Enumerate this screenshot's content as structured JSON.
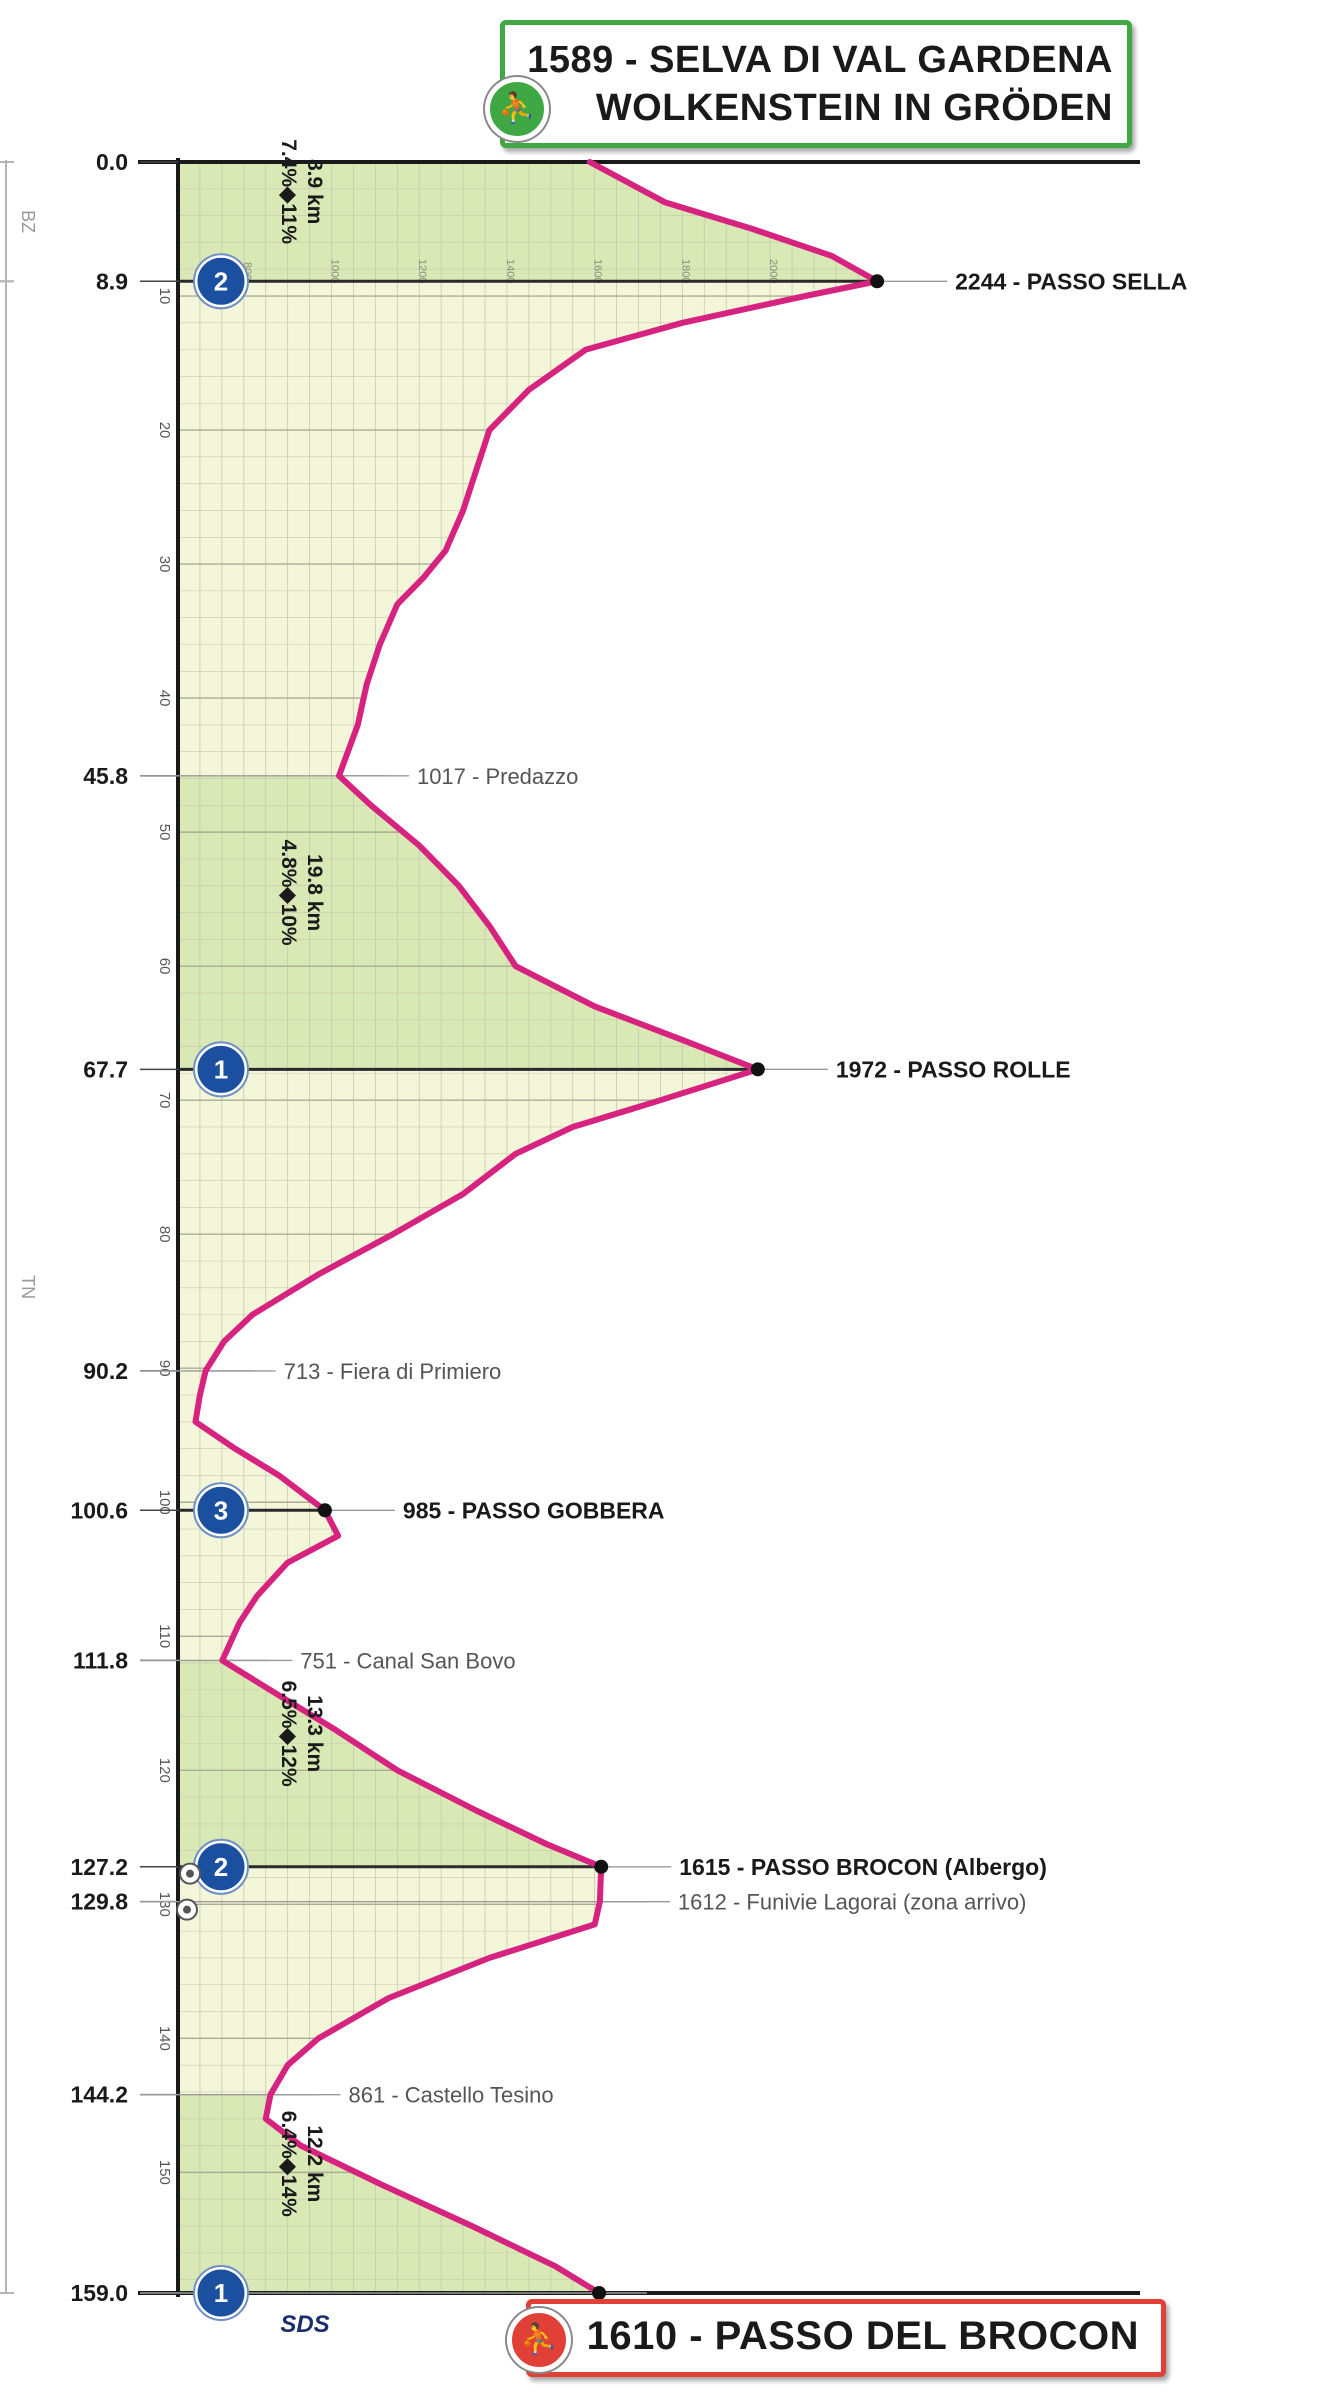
{
  "chart_data": {
    "type": "area",
    "orientation": "vertical",
    "start_label": "1589 - SELVA DI VAL GARDENA",
    "start_label_line2": "WOLKENSTEIN IN GRÖDEN",
    "finish_label": "1610 - PASSO DEL BROCON",
    "x_range_km": [
      0,
      159
    ],
    "y_range_m": [
      600,
      2300
    ],
    "distance_ticks": [
      10,
      20,
      30,
      40,
      50,
      60,
      70,
      80,
      90,
      100,
      110,
      120,
      130,
      140,
      150
    ],
    "altitude_ticks": [
      800,
      1000,
      1200,
      1400,
      1600,
      1800,
      2000
    ],
    "distance_markers": [
      "0.0",
      "8.9",
      "45.8",
      "67.7",
      "90.2",
      "100.6",
      "111.8",
      "127.2",
      "129.8",
      "144.2",
      "159.0"
    ],
    "profile": [
      {
        "km": 0,
        "alt": 1589
      },
      {
        "km": 3,
        "alt": 1760
      },
      {
        "km": 5,
        "alt": 1960
      },
      {
        "km": 7,
        "alt": 2140
      },
      {
        "km": 8.9,
        "alt": 2244
      },
      {
        "km": 10,
        "alt": 2080
      },
      {
        "km": 12,
        "alt": 1800
      },
      {
        "km": 14,
        "alt": 1580
      },
      {
        "km": 17,
        "alt": 1450
      },
      {
        "km": 20,
        "alt": 1360
      },
      {
        "km": 23,
        "alt": 1330
      },
      {
        "km": 26,
        "alt": 1300
      },
      {
        "km": 29,
        "alt": 1260
      },
      {
        "km": 31,
        "alt": 1210
      },
      {
        "km": 33,
        "alt": 1150
      },
      {
        "km": 36,
        "alt": 1110
      },
      {
        "km": 39,
        "alt": 1080
      },
      {
        "km": 42,
        "alt": 1060
      },
      {
        "km": 45.8,
        "alt": 1017
      },
      {
        "km": 48,
        "alt": 1090
      },
      {
        "km": 51,
        "alt": 1200
      },
      {
        "km": 54,
        "alt": 1290
      },
      {
        "km": 57,
        "alt": 1360
      },
      {
        "km": 60,
        "alt": 1420
      },
      {
        "km": 63,
        "alt": 1600
      },
      {
        "km": 65.5,
        "alt": 1800
      },
      {
        "km": 67.7,
        "alt": 1972
      },
      {
        "km": 70,
        "alt": 1750
      },
      {
        "km": 72,
        "alt": 1550
      },
      {
        "km": 74,
        "alt": 1420
      },
      {
        "km": 77,
        "alt": 1300
      },
      {
        "km": 80,
        "alt": 1140
      },
      {
        "km": 83,
        "alt": 970
      },
      {
        "km": 86,
        "alt": 820
      },
      {
        "km": 88,
        "alt": 755
      },
      {
        "km": 90.2,
        "alt": 713
      },
      {
        "km": 92,
        "alt": 700
      },
      {
        "km": 94,
        "alt": 690
      },
      {
        "km": 96,
        "alt": 780
      },
      {
        "km": 98,
        "alt": 880
      },
      {
        "km": 100.6,
        "alt": 985
      },
      {
        "km": 102.5,
        "alt": 1015
      },
      {
        "km": 104.5,
        "alt": 900
      },
      {
        "km": 107,
        "alt": 830
      },
      {
        "km": 109,
        "alt": 790
      },
      {
        "km": 111.8,
        "alt": 751
      },
      {
        "km": 114,
        "alt": 860
      },
      {
        "km": 117,
        "alt": 1010
      },
      {
        "km": 120,
        "alt": 1150
      },
      {
        "km": 123,
        "alt": 1330
      },
      {
        "km": 125.5,
        "alt": 1490
      },
      {
        "km": 127.2,
        "alt": 1615
      },
      {
        "km": 129.8,
        "alt": 1612
      },
      {
        "km": 131.5,
        "alt": 1600
      },
      {
        "km": 134,
        "alt": 1360
      },
      {
        "km": 137,
        "alt": 1130
      },
      {
        "km": 140,
        "alt": 970
      },
      {
        "km": 142,
        "alt": 900
      },
      {
        "km": 144.2,
        "alt": 861
      },
      {
        "km": 146,
        "alt": 850
      },
      {
        "km": 148,
        "alt": 930
      },
      {
        "km": 151,
        "alt": 1120
      },
      {
        "km": 154,
        "alt": 1320
      },
      {
        "km": 157,
        "alt": 1510
      },
      {
        "km": 159,
        "alt": 1610
      }
    ],
    "points": [
      {
        "km": 8.9,
        "label": "2244 - PASSO SELLA",
        "bold": true,
        "kom": "2"
      },
      {
        "km": 45.8,
        "label": "1017 - Predazzo",
        "bold": false
      },
      {
        "km": 67.7,
        "label": "1972 - PASSO ROLLE",
        "bold": true,
        "kom": "1"
      },
      {
        "km": 90.2,
        "label": "713 - Fiera di Primiero",
        "bold": false
      },
      {
        "km": 100.6,
        "label": "985 - PASSO GOBBERA",
        "bold": true,
        "kom": "3"
      },
      {
        "km": 111.8,
        "label": "751 - Canal San Bovo",
        "bold": false
      },
      {
        "km": 127.2,
        "label": "1615 - PASSO BROCON (Albergo)",
        "bold": true,
        "kom": "2"
      },
      {
        "km": 129.8,
        "label": "1612 - Funivie Lagorai (zona arrivo)",
        "bold": false
      },
      {
        "km": 144.2,
        "label": "861 - Castello Tesino",
        "bold": false
      },
      {
        "km": 159,
        "label": "",
        "bold": false,
        "kom": "1"
      }
    ],
    "climbs": [
      {
        "from_km": 0,
        "to_km": 8.9,
        "length": "8.9 km",
        "gradient": "7.4%◆11%"
      },
      {
        "from_km": 45.8,
        "to_km": 67.7,
        "length": "19.8 km",
        "gradient": "4.8%◆10%"
      },
      {
        "from_km": 111.8,
        "to_km": 127.2,
        "length": "13.3 km",
        "gradient": "6.5%◆12%"
      },
      {
        "from_km": 144.2,
        "to_km": 159,
        "length": "12.2 km",
        "gradient": "6.4%◆14%"
      }
    ],
    "provinces": [
      {
        "label": "BZ",
        "from_km": 0,
        "to_km": 8.9
      },
      {
        "label": "TN",
        "from_km": 8.9,
        "to_km": 159
      }
    ],
    "sprint_km": 129.8,
    "watermark": "SDS",
    "colors": {
      "profile": "#d6237f",
      "climb_fill": "#d9e9b5",
      "base_fill": "#f3f6d9",
      "grid": "#c5c9b0",
      "kom": "#1b4fa0",
      "start": "#3fa845",
      "finish": "#e04036"
    }
  }
}
